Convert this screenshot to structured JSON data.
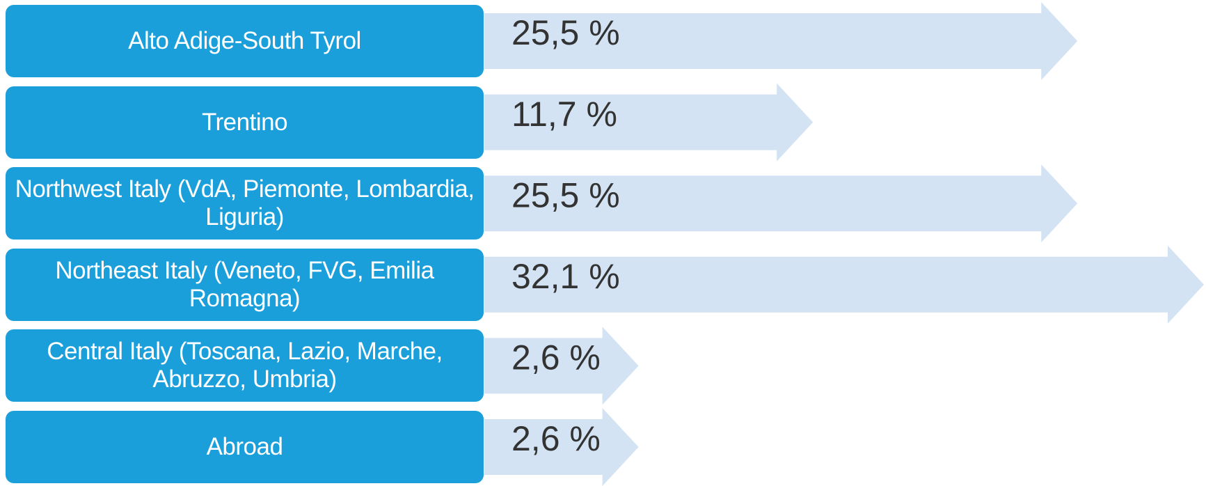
{
  "chart_data": {
    "type": "bar",
    "categories": [
      "Alto Adige-South Tyrol",
      "Trentino",
      "Northwest Italy (VdA, Piemonte, Lombardia, Liguria)",
      "Northeast Italy (Veneto, FVG, Emilia Romagna)",
      "Central Italy (Toscana, Lazio, Marche, Abruzzo, Umbria)",
      "Abroad"
    ],
    "values": [
      25.5,
      11.7,
      25.5,
      32.1,
      2.6,
      2.6
    ],
    "value_labels": [
      "25,5 %",
      "11,7 %",
      "25,5 %",
      "32,1 %",
      "2,6 %",
      "2,6 %"
    ],
    "color": "#d3e3f3",
    "label_color": "#1a9fdb"
  }
}
